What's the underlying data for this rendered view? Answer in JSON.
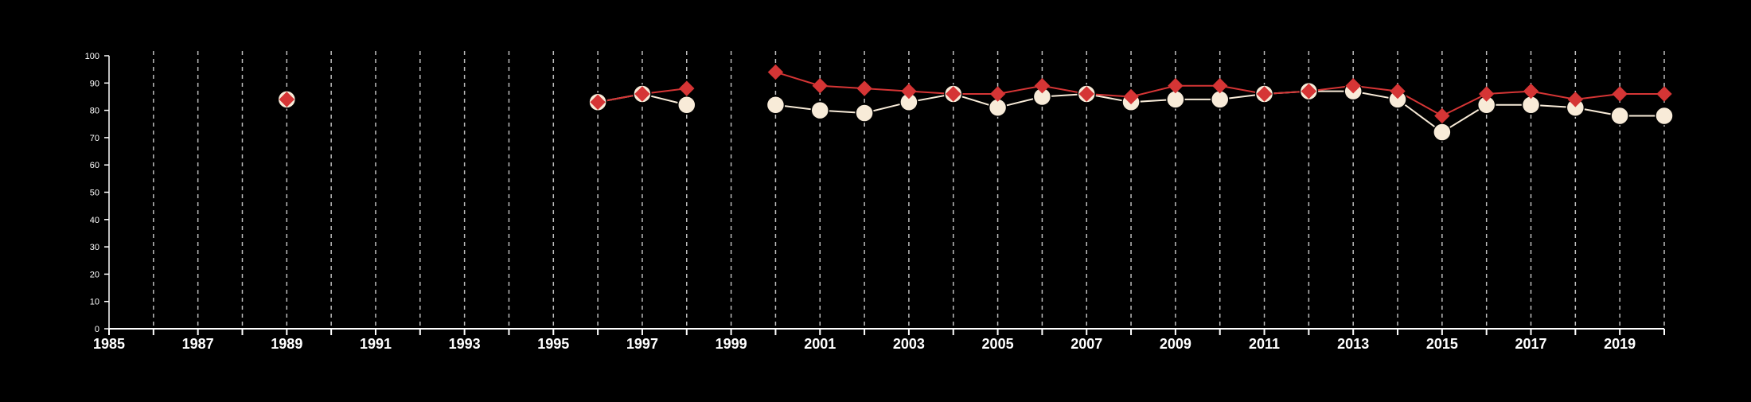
{
  "chart_data": {
    "type": "line",
    "title": "",
    "xlabel": "",
    "ylabel": "",
    "xlim": [
      1985,
      2020
    ],
    "ylim": [
      0,
      100
    ],
    "x_ticks_labeled": [
      "1985",
      "1987",
      "1989",
      "1991",
      "1993",
      "1995",
      "1997",
      "1999",
      "2001",
      "2003",
      "2005",
      "2007",
      "2009",
      "2011",
      "2013",
      "2015",
      "2017",
      "2019"
    ],
    "y_ticks": [
      0,
      10,
      20,
      30,
      40,
      50,
      60,
      70,
      80,
      90,
      100
    ],
    "vertical_grid": "dashed, every year",
    "background_color": "#000000",
    "series": [
      {
        "marker": "circle",
        "color": "#f8ebd8",
        "points": [
          [
            1989,
            84
          ],
          [
            1996,
            83
          ],
          [
            1997,
            86
          ],
          [
            1998,
            82
          ],
          [
            2000,
            82
          ],
          [
            2001,
            80
          ],
          [
            2002,
            79
          ],
          [
            2003,
            83
          ],
          [
            2004,
            86
          ],
          [
            2005,
            81
          ],
          [
            2006,
            85
          ],
          [
            2007,
            86
          ],
          [
            2008,
            83
          ],
          [
            2009,
            84
          ],
          [
            2010,
            84
          ],
          [
            2011,
            86
          ],
          [
            2012,
            87
          ],
          [
            2013,
            87
          ],
          [
            2014,
            84
          ],
          [
            2015,
            72
          ],
          [
            2016,
            82
          ],
          [
            2017,
            82
          ],
          [
            2018,
            81
          ],
          [
            2019,
            78
          ],
          [
            2020,
            78
          ]
        ]
      },
      {
        "marker": "diamond",
        "color": "#d53535",
        "points": [
          [
            1989,
            84
          ],
          [
            1996,
            83
          ],
          [
            1997,
            86
          ],
          [
            1998,
            88
          ],
          [
            2000,
            94
          ],
          [
            2001,
            89
          ],
          [
            2002,
            88
          ],
          [
            2003,
            87
          ],
          [
            2004,
            86
          ],
          [
            2005,
            86
          ],
          [
            2006,
            89
          ],
          [
            2007,
            86
          ],
          [
            2008,
            85
          ],
          [
            2009,
            89
          ],
          [
            2010,
            89
          ],
          [
            2011,
            86
          ],
          [
            2012,
            87
          ],
          [
            2013,
            89
          ],
          [
            2014,
            87
          ],
          [
            2015,
            78
          ],
          [
            2016,
            86
          ],
          [
            2017,
            87
          ],
          [
            2018,
            84
          ],
          [
            2019,
            86
          ],
          [
            2020,
            86
          ]
        ]
      }
    ]
  }
}
